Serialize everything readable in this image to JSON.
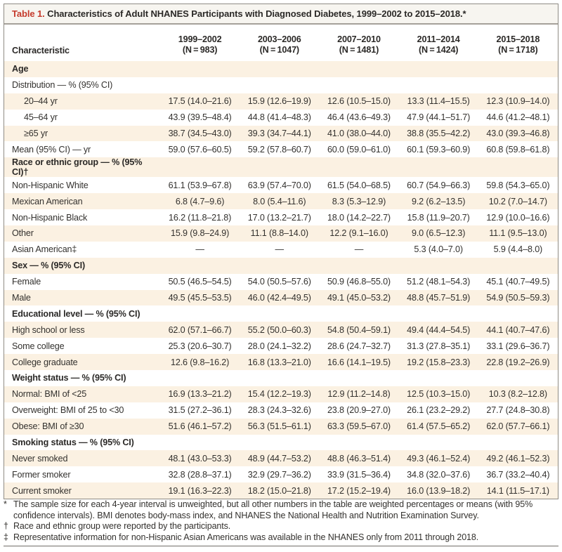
{
  "colors": {
    "accent_red": "#c53b2c",
    "shaded_row": "#fbf1e2",
    "frame_border": "#8f8c85",
    "text": "#33312e"
  },
  "table": {
    "title_label": "Table 1.",
    "title_text": "Characteristics of Adult NHANES Participants with Diagnosed Diabetes, 1999–2002 to 2015–2018.*",
    "header": {
      "characteristic": "Characteristic",
      "periods": [
        {
          "range": "1999–2002",
          "n": "(N = 983)"
        },
        {
          "range": "2003–2006",
          "n": "(N = 1047)"
        },
        {
          "range": "2007–2010",
          "n": "(N = 1481)"
        },
        {
          "range": "2011–2014",
          "n": "(N = 1424)"
        },
        {
          "range": "2015–2018",
          "n": "(N = 1718)"
        }
      ]
    },
    "rows": [
      {
        "kind": "section",
        "label": "Age",
        "values": [
          "",
          "",
          "",
          "",
          ""
        ]
      },
      {
        "kind": "item",
        "label": "Distribution — % (95% CI)",
        "values": [
          "",
          "",
          "",
          "",
          ""
        ]
      },
      {
        "kind": "subitem",
        "label": "20–44 yr",
        "values": [
          "17.5 (14.0–21.6)",
          "15.9 (12.6–19.9)",
          "12.6 (10.5–15.0)",
          "13.3 (11.4–15.5)",
          "12.3 (10.9–14.0)"
        ]
      },
      {
        "kind": "subitem",
        "label": "45–64 yr",
        "values": [
          "43.9 (39.5–48.4)",
          "44.8 (41.4–48.3)",
          "46.4 (43.6–49.3)",
          "47.9 (44.1–51.7)",
          "44.6 (41.2–48.1)"
        ]
      },
      {
        "kind": "subitem",
        "label": "≥65 yr",
        "values": [
          "38.7 (34.5–43.0)",
          "39.3 (34.7–44.1)",
          "41.0 (38.0–44.0)",
          "38.8 (35.5–42.2)",
          "43.0 (39.3–46.8)"
        ]
      },
      {
        "kind": "item",
        "label": "Mean (95% CI) — yr",
        "values": [
          "59.0 (57.6–60.5)",
          "59.2 (57.8–60.7)",
          "60.0 (59.0–61.0)",
          "60.1 (59.3–60.9)",
          "60.8 (59.8–61.8)"
        ]
      },
      {
        "kind": "section",
        "label": "Race or ethnic group — % (95% CI)†",
        "values": [
          "",
          "",
          "",
          "",
          ""
        ]
      },
      {
        "kind": "item",
        "label": "Non-Hispanic White",
        "values": [
          "61.1 (53.9–67.8)",
          "63.9 (57.4–70.0)",
          "61.5 (54.0–68.5)",
          "60.7 (54.9–66.3)",
          "59.8 (54.3–65.0)"
        ]
      },
      {
        "kind": "item",
        "label": "Mexican American",
        "values": [
          "6.8 (4.7–9.6)",
          "8.0 (5.4–11.6)",
          "8.3 (5.3–12.9)",
          "9.2 (6.2–13.5)",
          "10.2 (7.0–14.7)"
        ]
      },
      {
        "kind": "item",
        "label": "Non-Hispanic Black",
        "values": [
          "16.2 (11.8–21.8)",
          "17.0 (13.2–21.7)",
          "18.0 (14.2–22.7)",
          "15.8 (11.9–20.7)",
          "12.9 (10.0–16.6)"
        ]
      },
      {
        "kind": "item",
        "label": "Other",
        "values": [
          "15.9 (9.8–24.9)",
          "11.1 (8.8–14.0)",
          "12.2 (9.1–16.0)",
          "9.0 (6.5–12.3)",
          "11.1 (9.5–13.0)"
        ]
      },
      {
        "kind": "item",
        "label": "Asian American‡",
        "values": [
          "—",
          "—",
          "—",
          "5.3 (4.0–7.0)",
          "5.9 (4.4–8.0)"
        ]
      },
      {
        "kind": "section",
        "label": "Sex — % (95% CI)",
        "values": [
          "",
          "",
          "",
          "",
          ""
        ]
      },
      {
        "kind": "item",
        "label": "Female",
        "values": [
          "50.5 (46.5–54.5)",
          "54.0 (50.5–57.6)",
          "50.9 (46.8–55.0)",
          "51.2 (48.1–54.3)",
          "45.1 (40.7–49.5)"
        ]
      },
      {
        "kind": "item",
        "label": "Male",
        "values": [
          "49.5 (45.5–53.5)",
          "46.0 (42.4–49.5)",
          "49.1 (45.0–53.2)",
          "48.8 (45.7–51.9)",
          "54.9 (50.5–59.3)"
        ]
      },
      {
        "kind": "section",
        "label": "Educational level — % (95% CI)",
        "values": [
          "",
          "",
          "",
          "",
          ""
        ]
      },
      {
        "kind": "item",
        "label": "High school or less",
        "values": [
          "62.0 (57.1–66.7)",
          "55.2 (50.0–60.3)",
          "54.8 (50.4–59.1)",
          "49.4 (44.4–54.5)",
          "44.1 (40.7–47.6)"
        ]
      },
      {
        "kind": "item",
        "label": "Some college",
        "values": [
          "25.3 (20.6–30.7)",
          "28.0 (24.1–32.2)",
          "28.6 (24.7–32.7)",
          "31.3 (27.8–35.1)",
          "33.1 (29.6–36.7)"
        ]
      },
      {
        "kind": "item",
        "label": "College graduate",
        "values": [
          "12.6 (9.8–16.2)",
          "16.8 (13.3–21.0)",
          "16.6 (14.1–19.5)",
          "19.2 (15.8–23.3)",
          "22.8 (19.2–26.9)"
        ]
      },
      {
        "kind": "section",
        "label": "Weight status — % (95% CI)",
        "values": [
          "",
          "",
          "",
          "",
          ""
        ]
      },
      {
        "kind": "item",
        "label": "Normal: BMI of <25",
        "values": [
          "16.9 (13.3–21.2)",
          "15.4 (12.2–19.3)",
          "12.9 (11.2–14.8)",
          "12.5 (10.3–15.0)",
          "10.3 (8.2–12.8)"
        ]
      },
      {
        "kind": "item",
        "label": "Overweight: BMI of 25 to <30",
        "values": [
          "31.5 (27.2–36.1)",
          "28.3 (24.3–32.6)",
          "23.8 (20.9–27.0)",
          "26.1 (23.2–29.2)",
          "27.7 (24.8–30.8)"
        ]
      },
      {
        "kind": "item",
        "label": "Obese: BMI of ≥30",
        "values": [
          "51.6 (46.1–57.2)",
          "56.3 (51.5–61.1)",
          "63.3 (59.5–67.0)",
          "61.4 (57.5–65.2)",
          "62.0 (57.7–66.1)"
        ]
      },
      {
        "kind": "section",
        "label": "Smoking status — % (95% CI)",
        "values": [
          "",
          "",
          "",
          "",
          ""
        ]
      },
      {
        "kind": "item",
        "label": "Never smoked",
        "values": [
          "48.1 (43.0–53.3)",
          "48.9 (44.7–53.2)",
          "48.8 (46.3–51.4)",
          "49.3 (46.1–52.4)",
          "49.2 (46.1–52.3)"
        ]
      },
      {
        "kind": "item",
        "label": "Former smoker",
        "values": [
          "32.8 (28.8–37.1)",
          "32.9 (29.7–36.2)",
          "33.9 (31.5–36.4)",
          "34.8 (32.0–37.6)",
          "36.7 (33.2–40.4)"
        ]
      },
      {
        "kind": "item",
        "label": "Current smoker",
        "values": [
          "19.1 (16.3–22.3)",
          "18.2 (15.0–21.8)",
          "17.2 (15.2–19.4)",
          "16.0 (13.9–18.2)",
          "14.1 (11.5–17.1)"
        ]
      }
    ],
    "footnotes": [
      {
        "marker": "*",
        "text": "The sample size for each 4-year interval is unweighted, but all other numbers in the table are weighted percentages or means (with 95% confidence intervals). BMI denotes body-mass index, and NHANES the National Health and Nutrition Examination Survey."
      },
      {
        "marker": "†",
        "text": "Race and ethnic group were reported by the participants."
      },
      {
        "marker": "‡",
        "text": "Representative information for non-Hispanic Asian Americans was available in the NHANES only from 2011 through 2018."
      }
    ]
  }
}
